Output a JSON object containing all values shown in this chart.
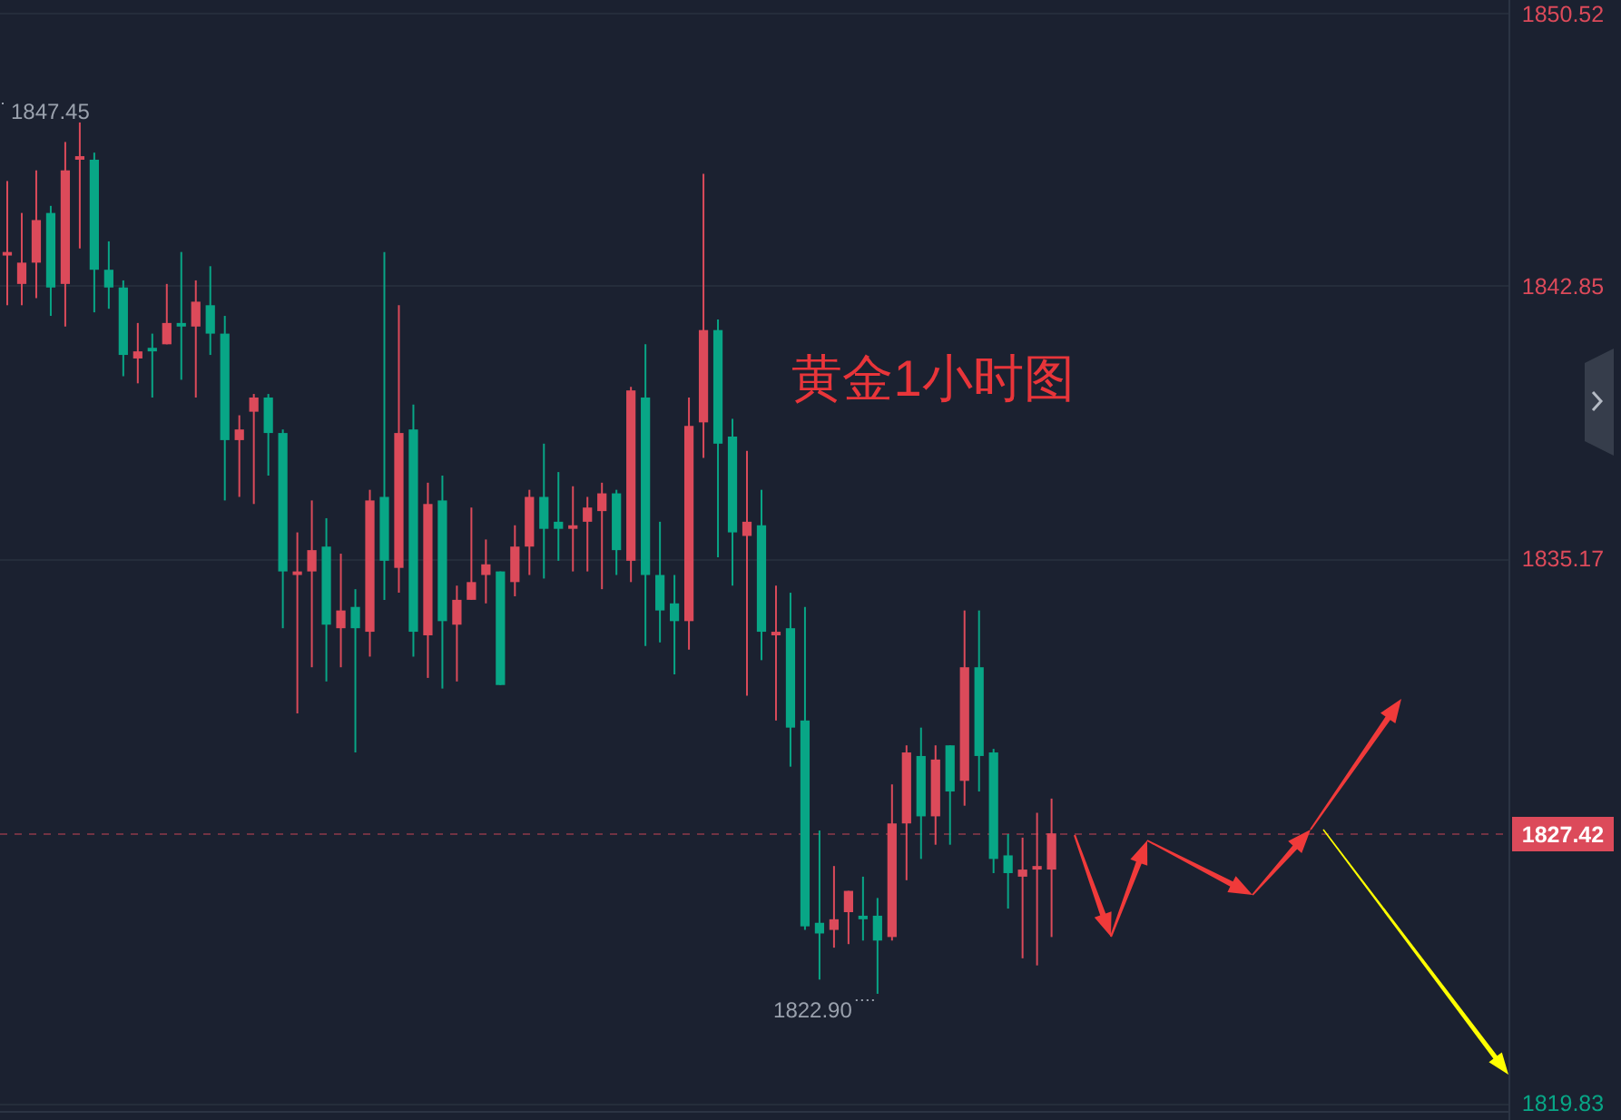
{
  "chart_data": {
    "type": "candlestick",
    "title": "黄金1小时图",
    "categories": [
      null,
      null,
      null,
      null,
      null,
      null,
      null,
      null,
      null,
      null,
      null,
      null,
      null,
      null,
      null,
      null,
      null,
      null,
      null,
      null,
      null,
      null,
      null,
      null,
      null,
      null,
      null,
      null,
      null,
      null,
      null,
      null,
      null,
      null,
      null,
      null,
      null,
      null,
      null,
      null,
      null,
      null,
      null,
      null,
      null,
      null,
      null,
      null,
      null,
      null,
      null,
      null,
      null,
      null,
      null,
      null,
      null,
      null,
      null,
      null,
      null,
      null,
      null,
      null,
      null,
      null,
      null,
      null,
      null,
      null,
      null,
      null,
      null,
      null,
      null,
      null,
      null,
      null,
      null,
      null,
      null,
      null,
      null,
      null,
      null,
      null,
      null,
      null,
      null,
      null,
      null,
      null,
      null,
      null,
      null,
      null,
      null,
      null,
      null,
      null,
      null,
      null,
      null,
      null
    ],
    "ohlc": [
      [
        1843.7,
        1845.8,
        1842.3,
        1843.8
      ],
      [
        1842.9,
        1844.9,
        1842.3,
        1843.5
      ],
      [
        1843.5,
        1846.1,
        1842.5,
        1844.7
      ],
      [
        1844.9,
        1845.1,
        1842.0,
        1842.8
      ],
      [
        1842.9,
        1846.9,
        1841.7,
        1846.1
      ],
      [
        1846.4,
        1847.45,
        1843.9,
        1846.5
      ],
      [
        1846.4,
        1846.6,
        1842.1,
        1843.3
      ],
      [
        1843.3,
        1844.1,
        1842.2,
        1842.8
      ],
      [
        1842.8,
        1843.0,
        1840.3,
        1840.9
      ],
      [
        1840.8,
        1841.8,
        1840.1,
        1841.0
      ],
      [
        1841.1,
        1841.5,
        1839.7,
        1841.0
      ],
      [
        1841.2,
        1842.9,
        1841.2,
        1841.8
      ],
      [
        1841.8,
        1843.8,
        1840.2,
        1841.7
      ],
      [
        1841.7,
        1843.0,
        1839.7,
        1842.4
      ],
      [
        1842.3,
        1843.4,
        1840.9,
        1841.5
      ],
      [
        1841.5,
        1842.0,
        1836.8,
        1838.5
      ],
      [
        1838.5,
        1839.2,
        1836.9,
        1838.8
      ],
      [
        1839.3,
        1839.8,
        1836.7,
        1839.7
      ],
      [
        1839.7,
        1839.8,
        1837.5,
        1838.7
      ],
      [
        1838.7,
        1838.8,
        1833.2,
        1834.8
      ],
      [
        1834.7,
        1835.9,
        1830.8,
        1834.8
      ],
      [
        1834.8,
        1836.8,
        1832.1,
        1835.4
      ],
      [
        1835.5,
        1836.3,
        1831.7,
        1833.3
      ],
      [
        1833.2,
        1835.3,
        1832.1,
        1833.7
      ],
      [
        1833.8,
        1834.3,
        1829.7,
        1833.2
      ],
      [
        1833.1,
        1837.1,
        1832.4,
        1836.8
      ],
      [
        1836.9,
        1843.8,
        1834.0,
        1835.1
      ],
      [
        1834.9,
        1842.3,
        1834.2,
        1838.7
      ],
      [
        1838.8,
        1839.5,
        1832.4,
        1833.1
      ],
      [
        1833.0,
        1837.3,
        1831.8,
        1836.7
      ],
      [
        1836.8,
        1837.5,
        1831.5,
        1833.4
      ],
      [
        1833.3,
        1834.4,
        1831.7,
        1834.0
      ],
      [
        1834.0,
        1836.6,
        1834.0,
        1834.5
      ],
      [
        1834.7,
        1835.7,
        1833.9,
        1835.0
      ],
      [
        1834.8,
        1834.8,
        1831.6,
        1831.6
      ],
      [
        1834.5,
        1836.1,
        1834.1,
        1835.5
      ],
      [
        1835.5,
        1837.1,
        1834.7,
        1836.9
      ],
      [
        1836.9,
        1838.4,
        1834.6,
        1836.0
      ],
      [
        1836.2,
        1837.6,
        1835.1,
        1836.0
      ],
      [
        1836.0,
        1837.2,
        1834.8,
        1836.1
      ],
      [
        1836.2,
        1836.9,
        1834.8,
        1836.6
      ],
      [
        1836.5,
        1837.3,
        1834.3,
        1837.0
      ],
      [
        1837.0,
        1837.1,
        1834.7,
        1835.4
      ],
      [
        1835.1,
        1840.0,
        1834.5,
        1839.9
      ],
      [
        1839.7,
        1841.2,
        1832.7,
        1834.7
      ],
      [
        1834.7,
        1836.2,
        1832.8,
        1833.7
      ],
      [
        1833.9,
        1834.7,
        1831.9,
        1833.4
      ],
      [
        1833.4,
        1839.7,
        1832.6,
        1838.9
      ],
      [
        1839.0,
        1846.0,
        1838.0,
        1841.6
      ],
      [
        1841.6,
        1841.9,
        1835.2,
        1838.4
      ],
      [
        1838.6,
        1839.1,
        1834.4,
        1835.9
      ],
      [
        1835.8,
        1838.2,
        1831.3,
        1836.2
      ],
      [
        1836.1,
        1837.1,
        1832.3,
        1833.1
      ],
      [
        1833.0,
        1834.4,
        1830.6,
        1833.1
      ],
      [
        1833.2,
        1834.2,
        1829.3,
        1830.4
      ],
      [
        1830.6,
        1833.8,
        1824.7,
        1824.8
      ],
      [
        1824.9,
        1827.5,
        1823.3,
        1824.6
      ],
      [
        1824.7,
        1826.5,
        1824.2,
        1825.0
      ],
      [
        1825.2,
        1825.8,
        1824.3,
        1825.8
      ],
      [
        1825.1,
        1826.2,
        1824.4,
        1825.0
      ],
      [
        1825.1,
        1825.6,
        1822.9,
        1824.4
      ],
      [
        1824.5,
        1828.8,
        1824.4,
        1827.7
      ],
      [
        1827.7,
        1829.9,
        1826.1,
        1829.7
      ],
      [
        1829.6,
        1830.4,
        1826.7,
        1827.9
      ],
      [
        1827.9,
        1829.9,
        1827.1,
        1829.5
      ],
      [
        1829.9,
        1829.9,
        1827.1,
        1828.6
      ],
      [
        1828.9,
        1833.7,
        1828.2,
        1832.1
      ],
      [
        1832.1,
        1833.7,
        1828.6,
        1829.6
      ],
      [
        1829.7,
        1829.8,
        1826.3,
        1826.7
      ],
      [
        1826.8,
        1827.4,
        1825.3,
        1826.3
      ],
      [
        1826.2,
        1827.3,
        1823.9,
        1826.4
      ],
      [
        1826.4,
        1828.0,
        1823.7,
        1826.5
      ],
      [
        1826.4,
        1828.4,
        1824.5,
        1827.42
      ],
      null,
      null,
      null,
      null,
      null,
      null,
      null,
      null,
      null,
      null,
      null,
      null,
      null,
      null,
      null,
      null,
      null,
      null,
      null,
      null,
      null,
      null,
      null,
      null,
      null,
      null,
      null,
      null,
      null,
      null,
      null
    ],
    "colors": [
      "#dc4a5a",
      "#dc4a5a",
      "#dc4a5a",
      "#08a686",
      "#dc4a5a",
      "#dc4a5a",
      "#08a686",
      "#08a686",
      "#08a686",
      "#dc4a5a",
      "#08a686",
      "#dc4a5a",
      "#08a686",
      "#dc4a5a",
      "#08a686",
      "#08a686",
      "#dc4a5a",
      "#dc4a5a",
      "#08a686",
      "#08a686",
      "#dc4a5a",
      "#dc4a5a",
      "#08a686",
      "#dc4a5a",
      "#08a686",
      "#dc4a5a",
      "#08a686",
      "#dc4a5a",
      "#08a686",
      "#dc4a5a",
      "#08a686",
      "#dc4a5a",
      "#dc4a5a",
      "#dc4a5a",
      "#08a686",
      "#dc4a5a",
      "#dc4a5a",
      "#08a686",
      "#08a686",
      "#dc4a5a",
      "#dc4a5a",
      "#dc4a5a",
      "#08a686",
      "#dc4a5a",
      "#08a686",
      "#08a686",
      "#08a686",
      "#dc4a5a",
      "#dc4a5a",
      "#08a686",
      "#08a686",
      "#dc4a5a",
      "#08a686",
      "#dc4a5a",
      "#08a686",
      "#08a686",
      "#08a686",
      "#dc4a5a",
      "#dc4a5a",
      "#08a686",
      "#08a686",
      "#dc4a5a",
      "#dc4a5a",
      "#08a686",
      "#dc4a5a",
      "#08a686",
      "#dc4a5a",
      "#08a686",
      "#08a686",
      "#08a686",
      "#dc4a5a",
      "#dc4a5a",
      "#dc4a5a",
      null,
      null,
      null,
      null,
      null,
      null,
      null,
      null,
      null,
      null,
      null,
      null,
      null,
      null,
      null,
      null,
      null,
      null,
      null,
      null,
      null,
      null,
      null,
      null,
      null,
      null,
      null,
      null,
      null,
      null,
      null
    ],
    "ylim": [
      1819.6,
      1850.9
    ],
    "yticks": [
      1819.83,
      1835.17,
      1842.85,
      1850.52
    ],
    "grid": "y",
    "ref_lines": [
      {
        "axis": "y",
        "value": 1827.42,
        "label": "1827.42",
        "color": "#dc4a5a",
        "line_style": "dashed"
      }
    ],
    "annotations": [
      "1847.45",
      "1822.90"
    ]
  }
}
